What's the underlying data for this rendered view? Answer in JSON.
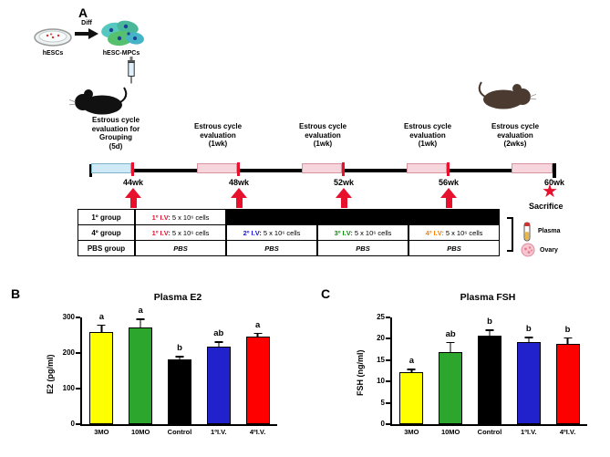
{
  "figure": {
    "panelA": {
      "label": "A",
      "hescs": "hESCs",
      "diff": "Diff",
      "mpcs": "hESC-MPCs",
      "eval_grouping": "Estrous cycle evaluation for Grouping",
      "eval_grouping_duration": "(5d)",
      "eval_1wk": "Estrous cycle evaluation",
      "eval_1wk_duration": "(1wk)",
      "eval_2wk": "Estrous cycle evaluation",
      "eval_2wk_duration": "(2wks)",
      "weeks": [
        "44wk",
        "48wk",
        "52wk",
        "56wk",
        "60wk"
      ],
      "table": {
        "row_labels": [
          "1º group",
          "4º group",
          "PBS group"
        ],
        "inj_prefixes": [
          "1º I.V:",
          "2º I.V:",
          "3º I.V:",
          "4º I.V:"
        ],
        "inj_dose": "5 x 10⁶ cells",
        "pbs": "PBS",
        "prefix_colors": [
          "#e8112d",
          "#1414e0",
          "#0a8f0a",
          "#ff7f00"
        ]
      },
      "sacrifice": "Sacrifice",
      "plasma": "Plasma",
      "ovary": "Ovary",
      "accent_red": "#e8112d"
    },
    "panelB_label": "B",
    "panelC_label": "C"
  },
  "chart_data": [
    {
      "type": "bar",
      "title": "Plasma E2",
      "ylabel": "E2 (pg/ml)",
      "categories": [
        "3MO",
        "10MO",
        "Control",
        "1ºI.V.",
        "4ºI.V."
      ],
      "values": [
        260,
        272,
        182,
        218,
        245
      ],
      "errors": [
        20,
        25,
        10,
        15,
        12
      ],
      "letters": [
        "a",
        "a",
        "b",
        "ab",
        "a"
      ],
      "colors": [
        "#ffff00",
        "#2ca62c",
        "#000000",
        "#2222cc",
        "#ff0000"
      ],
      "ylim": [
        0,
        300
      ],
      "yticks": [
        0,
        100,
        200,
        300
      ],
      "grid": false,
      "legend": "none"
    },
    {
      "type": "bar",
      "title": "Plasma FSH",
      "ylabel": "FSH (ng/ml)",
      "categories": [
        "3MO",
        "10MO",
        "Control",
        "1ºI.V.",
        "4ºI.V."
      ],
      "values": [
        12.2,
        16.8,
        20.7,
        19.2,
        18.9
      ],
      "errors": [
        0.8,
        2.5,
        1.5,
        1.3,
        1.5
      ],
      "letters": [
        "a",
        "ab",
        "b",
        "b",
        "b"
      ],
      "colors": [
        "#ffff00",
        "#2ca62c",
        "#000000",
        "#2222cc",
        "#ff0000"
      ],
      "ylim": [
        0,
        25
      ],
      "yticks": [
        0,
        5,
        10,
        15,
        20,
        25
      ],
      "grid": false,
      "legend": "none"
    }
  ]
}
